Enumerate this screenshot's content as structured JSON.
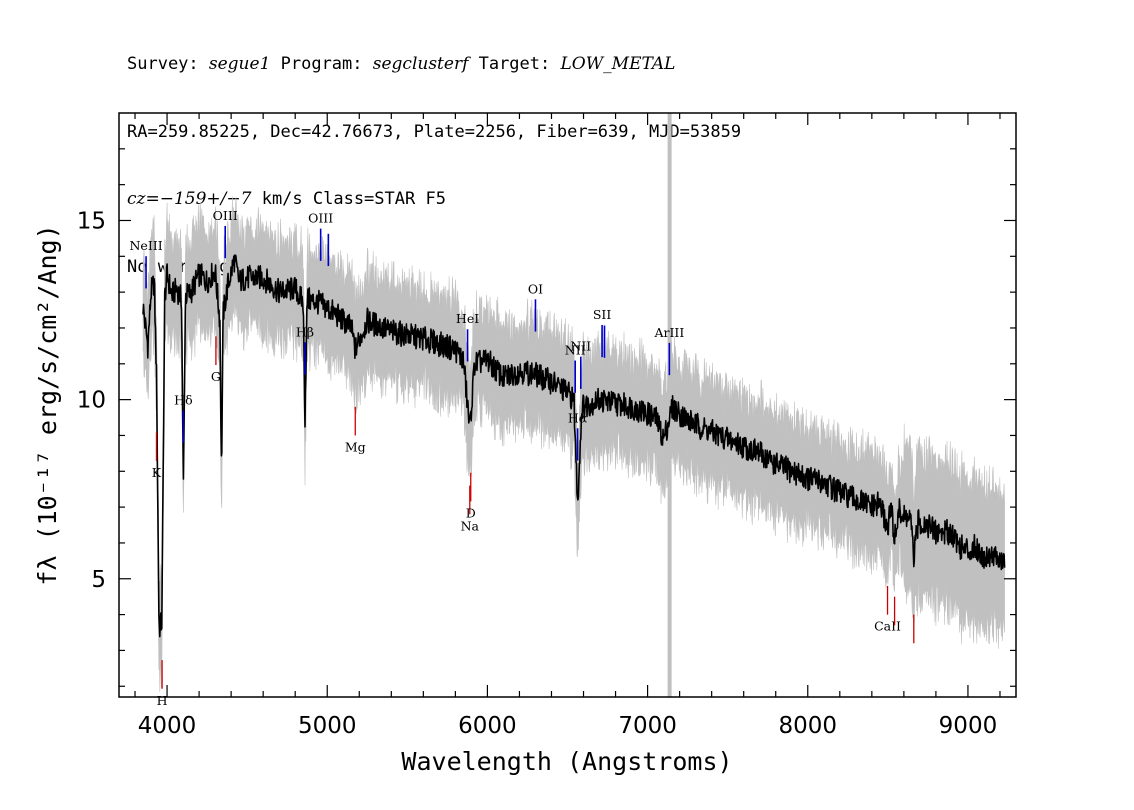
{
  "header": {
    "survey_prefix": "Survey: ",
    "survey": "segue1",
    "program_prefix": " Program: ",
    "program": "segclusterf",
    "target_prefix": " Target: ",
    "target": "LOW_METAL",
    "line2": "RA=259.85225, Dec=42.76673, Plate=2256, Fiber=639, MJD=53859",
    "cz_prefix": "cz=",
    "cz_value": "−159+/−7",
    "cz_suffix": " km/s Class=STAR F5",
    "line4": "No warnings."
  },
  "chart_data": {
    "type": "line",
    "xlabel": "Wavelength (Angstroms)",
    "ylabel": "fλ (10⁻¹⁷ erg/s/cm²/Ang)",
    "xlim": [
      3700,
      9300
    ],
    "ylim": [
      1.7,
      18.0
    ],
    "xticks": [
      4000,
      5000,
      6000,
      7000,
      8000,
      9000
    ],
    "yticks": [
      5,
      10,
      15
    ],
    "masked_region": [
      7125,
      7150
    ],
    "colors": {
      "flux": "#000000",
      "error_band": "#c0c0c0",
      "emission_marker": "#0000cc",
      "absorption_marker": "#cc0000",
      "masked": "#c0c0c0"
    },
    "series": [
      {
        "x": [
          3850,
          3880,
          3900,
          3920,
          3935,
          3950,
          3968,
          3985,
          4000,
          4030,
          4060,
          4090,
          4102,
          4115,
          4150,
          4200,
          4250,
          4300,
          4330,
          4340,
          4350,
          4380,
          4420,
          4450,
          4500,
          4600,
          4700,
          4800,
          4850,
          4861,
          4875,
          4950,
          5050,
          5150,
          5175,
          5250,
          5400,
          5600,
          5800,
          5850,
          5890,
          5920,
          6000,
          6100,
          6200,
          6300,
          6400,
          6500,
          6540,
          6563,
          6590,
          6650,
          6700,
          6800,
          6900,
          7000,
          7050,
          7100,
          7125,
          7155,
          7200,
          7300,
          7400,
          7500,
          7600,
          7700,
          7800,
          7900,
          8000,
          8100,
          8200,
          8300,
          8400,
          8450,
          8498,
          8520,
          8542,
          8570,
          8600,
          8640,
          8662,
          8690,
          8750,
          8800,
          8900,
          8950,
          9000,
          9050,
          9100,
          9150,
          9200,
          9230
        ],
        "y": [
          12.6,
          11.5,
          13.0,
          13.3,
          10.5,
          3.6,
          3.8,
          12.8,
          13.5,
          12.9,
          13.1,
          12.8,
          7.6,
          12.9,
          13.0,
          13.5,
          13.3,
          13.6,
          12.2,
          7.8,
          12.4,
          13.2,
          13.9,
          13.3,
          13.4,
          13.4,
          13.0,
          13.1,
          12.7,
          9.5,
          12.8,
          12.7,
          12.4,
          12.0,
          11.4,
          12.2,
          11.9,
          11.7,
          11.4,
          11.1,
          9.2,
          11.0,
          11.1,
          10.6,
          10.8,
          10.7,
          10.5,
          10.2,
          10.0,
          7.1,
          9.8,
          9.9,
          10.0,
          9.9,
          9.8,
          9.6,
          9.5,
          8.9,
          9.3,
          9.8,
          9.6,
          9.3,
          9.1,
          8.9,
          8.7,
          8.5,
          8.2,
          8.0,
          7.8,
          7.7,
          7.4,
          7.2,
          7.0,
          7.1,
          6.4,
          7.0,
          6.1,
          6.9,
          6.7,
          6.7,
          5.6,
          6.6,
          6.5,
          6.3,
          6.3,
          5.9,
          5.8,
          5.9,
          5.6,
          5.7,
          5.5,
          5.4
        ]
      }
    ],
    "line_markers": [
      {
        "label": "NeIII",
        "wavelength": 3869,
        "kind": "emission"
      },
      {
        "label": "Hδ",
        "wavelength": 4102,
        "kind": "emission"
      },
      {
        "label": "OIII",
        "wavelength": 4363,
        "kind": "emission"
      },
      {
        "label": "Hβ",
        "wavelength": 4861,
        "kind": "emission"
      },
      {
        "label": "OIII",
        "wavelength": 4959,
        "kind": "emission"
      },
      {
        "label": "",
        "wavelength": 5007,
        "kind": "emission"
      },
      {
        "label": "HeI",
        "wavelength": 5876,
        "kind": "emission"
      },
      {
        "label": "OI",
        "wavelength": 6300,
        "kind": "emission"
      },
      {
        "label": "NII",
        "wavelength": 6548,
        "kind": "emission"
      },
      {
        "label": "Hα",
        "wavelength": 6563,
        "kind": "emission"
      },
      {
        "label": "NII",
        "wavelength": 6583,
        "kind": "emission"
      },
      {
        "label": "SII",
        "wavelength": 6716,
        "kind": "emission"
      },
      {
        "label": "",
        "wavelength": 6731,
        "kind": "emission"
      },
      {
        "label": "ArIII",
        "wavelength": 7136,
        "kind": "emission"
      },
      {
        "label": "K",
        "wavelength": 3934,
        "kind": "absorption"
      },
      {
        "label": "H",
        "wavelength": 3969,
        "kind": "absorption"
      },
      {
        "label": "G",
        "wavelength": 4305,
        "kind": "absorption"
      },
      {
        "label": "Mg",
        "wavelength": 5175,
        "kind": "absorption"
      },
      {
        "label": "Na",
        "wavelength": 5890,
        "kind": "absorption"
      },
      {
        "label": "D",
        "wavelength": 5896,
        "kind": "absorption"
      },
      {
        "label": "CaII",
        "wavelength": 8498,
        "kind": "absorption"
      },
      {
        "label": "",
        "wavelength": 8542,
        "kind": "absorption"
      },
      {
        "label": "",
        "wavelength": 8662,
        "kind": "absorption"
      }
    ]
  }
}
